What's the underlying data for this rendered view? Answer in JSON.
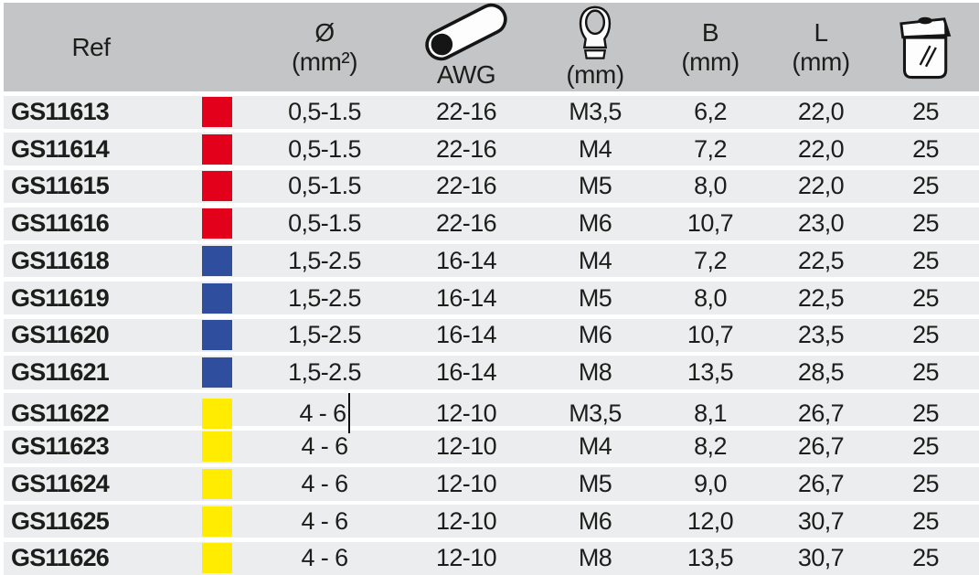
{
  "page": {
    "header": {
      "col_ref": "Ref",
      "col_diameter": {
        "symbol": "Ø",
        "unit": "(mm²)"
      },
      "col_awg": {
        "icon": "cable-cross-section-icon",
        "label": "AWG"
      },
      "col_ring": {
        "icon": "ring-terminal-icon",
        "unit": "(mm)"
      },
      "col_b": {
        "label": "B",
        "unit": "(mm)"
      },
      "col_l": {
        "label": "L",
        "unit": "(mm)"
      },
      "col_qty": {
        "icon": "package-icon"
      }
    },
    "colors": {
      "header_bg": "#c3c5c6",
      "row_bg": "#ebedee",
      "text": "#1d1d1b",
      "swatch_red": "#e2001a",
      "swatch_blue": "#2f4f9e",
      "swatch_yellow": "#ffec00"
    },
    "rows": [
      {
        "ref": "GS11613",
        "color": "red",
        "diameter": "0,5-1.5",
        "awg": "22-16",
        "thread": "M3,5",
        "b": "6,2",
        "l": "22,0",
        "qty": "25"
      },
      {
        "ref": "GS11614",
        "color": "red",
        "diameter": "0,5-1.5",
        "awg": "22-16",
        "thread": "M4",
        "b": "7,2",
        "l": "22,0",
        "qty": "25"
      },
      {
        "ref": "GS11615",
        "color": "red",
        "diameter": "0,5-1.5",
        "awg": "22-16",
        "thread": "M5",
        "b": "8,0",
        "l": "22,0",
        "qty": "25"
      },
      {
        "ref": "GS11616",
        "color": "red",
        "diameter": "0,5-1.5",
        "awg": "22-16",
        "thread": "M6",
        "b": "10,7",
        "l": "23,0",
        "qty": "25"
      },
      {
        "ref": "GS11618",
        "color": "blue",
        "diameter": "1,5-2.5",
        "awg": "16-14",
        "thread": "M4",
        "b": "7,2",
        "l": "22,5",
        "qty": "25"
      },
      {
        "ref": "GS11619",
        "color": "blue",
        "diameter": "1,5-2.5",
        "awg": "16-14",
        "thread": "M5",
        "b": "8,0",
        "l": "22,5",
        "qty": "25"
      },
      {
        "ref": "GS11620",
        "color": "blue",
        "diameter": "1,5-2.5",
        "awg": "16-14",
        "thread": "M6",
        "b": "10,7",
        "l": "23,5",
        "qty": "25"
      },
      {
        "ref": "GS11621",
        "color": "blue",
        "diameter": "1,5-2.5",
        "awg": "16-14",
        "thread": "M8",
        "b": "13,5",
        "l": "28,5",
        "qty": "25"
      },
      {
        "ref": "GS11622",
        "color": "yellow",
        "diameter": "4 - 6",
        "awg": "12-10",
        "thread": "M3,5",
        "b": "8,1",
        "l": "26,7",
        "qty": "25",
        "caret": true
      },
      {
        "ref": "GS11623",
        "color": "yellow",
        "diameter": "4 - 6",
        "awg": "12-10",
        "thread": "M4",
        "b": "8,2",
        "l": "26,7",
        "qty": "25"
      },
      {
        "ref": "GS11624",
        "color": "yellow",
        "diameter": "4 - 6",
        "awg": "12-10",
        "thread": "M5",
        "b": "9,0",
        "l": "26,7",
        "qty": "25"
      },
      {
        "ref": "GS11625",
        "color": "yellow",
        "diameter": "4 - 6",
        "awg": "12-10",
        "thread": "M6",
        "b": "12,0",
        "l": "30,7",
        "qty": "25"
      },
      {
        "ref": "GS11626",
        "color": "yellow",
        "diameter": "4 - 6",
        "awg": "12-10",
        "thread": "M8",
        "b": "13,5",
        "l": "30,7",
        "qty": "25"
      }
    ]
  }
}
